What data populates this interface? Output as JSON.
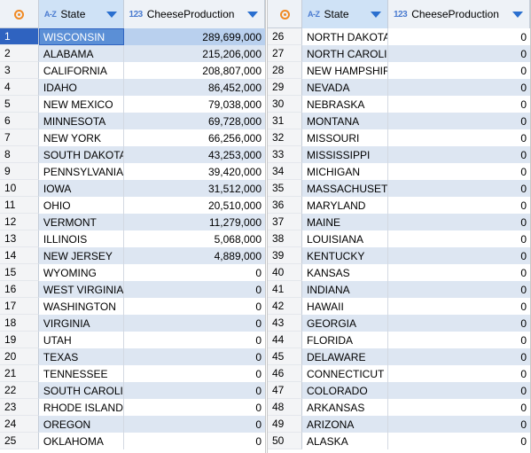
{
  "colors": {
    "accent": "#2f63c0",
    "header_bg": "#eef2f7",
    "alt_row": "#dde6f2",
    "corner_icon": "#f08a24"
  },
  "left_panel": {
    "columns": {
      "state_icon": "A-Z",
      "state": "State",
      "prod_icon": "123",
      "prod": "CheeseProduction"
    },
    "rows": [
      {
        "n": "1",
        "state": "WISCONSIN",
        "value": "289,699,000"
      },
      {
        "n": "2",
        "state": "ALABAMA",
        "value": "215,206,000"
      },
      {
        "n": "3",
        "state": "CALIFORNIA",
        "value": "208,807,000"
      },
      {
        "n": "4",
        "state": "IDAHO",
        "value": "86,452,000"
      },
      {
        "n": "5",
        "state": "NEW MEXICO",
        "value": "79,038,000"
      },
      {
        "n": "6",
        "state": "MINNESOTA",
        "value": "69,728,000"
      },
      {
        "n": "7",
        "state": "NEW YORK",
        "value": "66,256,000"
      },
      {
        "n": "8",
        "state": "SOUTH DAKOTA",
        "value": "43,253,000"
      },
      {
        "n": "9",
        "state": "PENNSYLVANIA",
        "value": "39,420,000"
      },
      {
        "n": "10",
        "state": "IOWA",
        "value": "31,512,000"
      },
      {
        "n": "11",
        "state": "OHIO",
        "value": "20,510,000"
      },
      {
        "n": "12",
        "state": "VERMONT",
        "value": "11,279,000"
      },
      {
        "n": "13",
        "state": "ILLINOIS",
        "value": "5,068,000"
      },
      {
        "n": "14",
        "state": "NEW JERSEY",
        "value": "4,889,000"
      },
      {
        "n": "15",
        "state": "WYOMING",
        "value": "0"
      },
      {
        "n": "16",
        "state": "WEST VIRGINIA",
        "value": "0"
      },
      {
        "n": "17",
        "state": "WASHINGTON",
        "value": "0"
      },
      {
        "n": "18",
        "state": "VIRGINIA",
        "value": "0"
      },
      {
        "n": "19",
        "state": "UTAH",
        "value": "0"
      },
      {
        "n": "20",
        "state": "TEXAS",
        "value": "0"
      },
      {
        "n": "21",
        "state": "TENNESSEE",
        "value": "0"
      },
      {
        "n": "22",
        "state": "SOUTH CAROLIN",
        "value": "0"
      },
      {
        "n": "23",
        "state": "RHODE ISLAND",
        "value": "0"
      },
      {
        "n": "24",
        "state": "OREGON",
        "value": "0"
      },
      {
        "n": "25",
        "state": "OKLAHOMA",
        "value": "0"
      }
    ]
  },
  "right_panel": {
    "columns": {
      "state_icon": "A-Z",
      "state": "State",
      "prod_icon": "123",
      "prod": "CheeseProduction"
    },
    "rows": [
      {
        "n": "26",
        "state": "NORTH DAKOTA",
        "value": "0"
      },
      {
        "n": "27",
        "state": "NORTH CAROLIN",
        "value": "0"
      },
      {
        "n": "28",
        "state": "NEW HAMPSHIR",
        "value": "0"
      },
      {
        "n": "29",
        "state": "NEVADA",
        "value": "0"
      },
      {
        "n": "30",
        "state": "NEBRASKA",
        "value": "0"
      },
      {
        "n": "31",
        "state": "MONTANA",
        "value": "0"
      },
      {
        "n": "32",
        "state": "MISSOURI",
        "value": "0"
      },
      {
        "n": "33",
        "state": "MISSISSIPPI",
        "value": "0"
      },
      {
        "n": "34",
        "state": "MICHIGAN",
        "value": "0"
      },
      {
        "n": "35",
        "state": "MASSACHUSETT",
        "value": "0"
      },
      {
        "n": "36",
        "state": "MARYLAND",
        "value": "0"
      },
      {
        "n": "37",
        "state": "MAINE",
        "value": "0"
      },
      {
        "n": "38",
        "state": "LOUISIANA",
        "value": "0"
      },
      {
        "n": "39",
        "state": "KENTUCKY",
        "value": "0"
      },
      {
        "n": "40",
        "state": "KANSAS",
        "value": "0"
      },
      {
        "n": "41",
        "state": "INDIANA",
        "value": "0"
      },
      {
        "n": "42",
        "state": "HAWAII",
        "value": "0"
      },
      {
        "n": "43",
        "state": "GEORGIA",
        "value": "0"
      },
      {
        "n": "44",
        "state": "FLORIDA",
        "value": "0"
      },
      {
        "n": "45",
        "state": "DELAWARE",
        "value": "0"
      },
      {
        "n": "46",
        "state": "CONNECTICUT",
        "value": "0"
      },
      {
        "n": "47",
        "state": "COLORADO",
        "value": "0"
      },
      {
        "n": "48",
        "state": "ARKANSAS",
        "value": "0"
      },
      {
        "n": "49",
        "state": "ARIZONA",
        "value": "0"
      },
      {
        "n": "50",
        "state": "ALASKA",
        "value": "0"
      }
    ]
  }
}
